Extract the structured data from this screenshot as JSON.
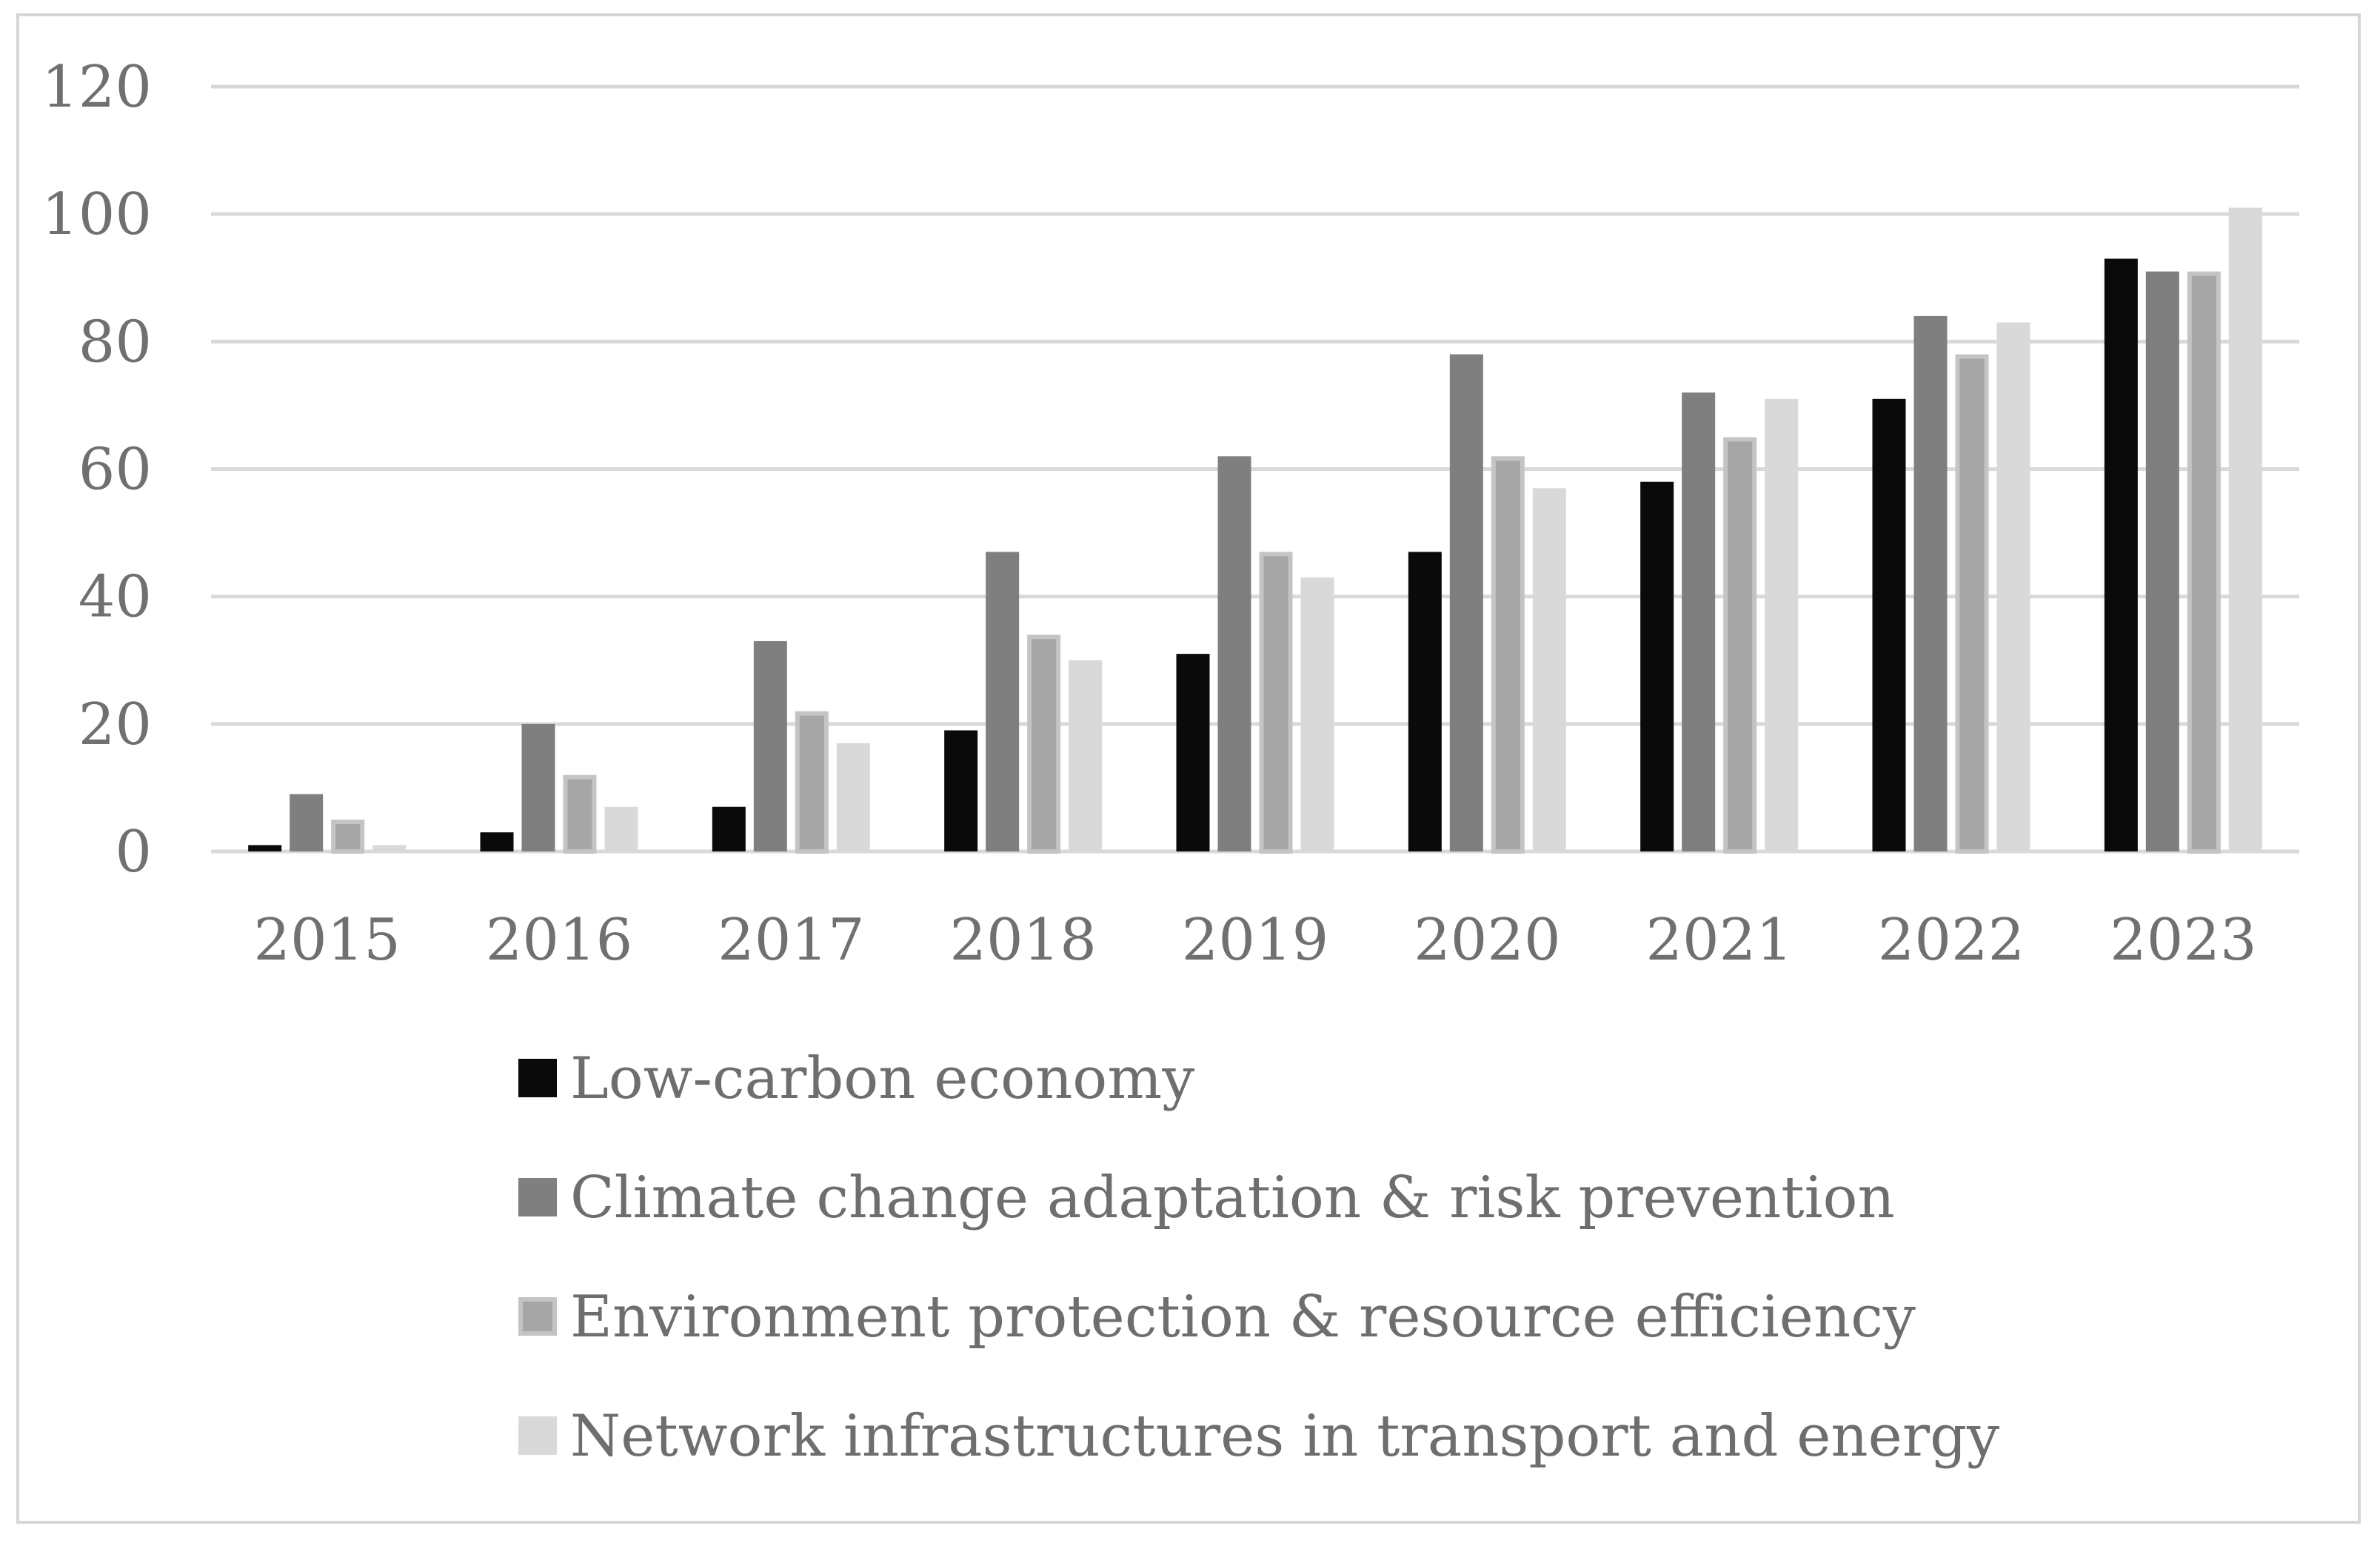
{
  "chart_data": {
    "type": "bar",
    "title": "",
    "xlabel": "",
    "ylabel": "",
    "ylim": [
      0,
      120
    ],
    "yticks": [
      0,
      20,
      40,
      60,
      80,
      100,
      120
    ],
    "grid": true,
    "legend_position": "bottom",
    "categories": [
      "2015",
      "2016",
      "2017",
      "2018",
      "2019",
      "2020",
      "2021",
      "2022",
      "2023"
    ],
    "series": [
      {
        "name": "Low-carbon economy",
        "color": "#0a0a0a",
        "values": [
          1,
          3,
          7,
          19,
          31,
          47,
          58,
          71,
          93
        ]
      },
      {
        "name": "Climate change adaptation & risk prevention",
        "color": "#7f7f7f",
        "values": [
          9,
          20,
          33,
          47,
          62,
          78,
          72,
          84,
          91
        ]
      },
      {
        "name": "Environment protection & resource efficiency",
        "color": "#a6a6a6",
        "stroke": "#c4c4c4",
        "values": [
          5,
          12,
          22,
          34,
          47,
          62,
          65,
          78,
          91
        ]
      },
      {
        "name": "Network infrastructures in transport and energy",
        "color": "#d9d9d9",
        "values": [
          1,
          7,
          17,
          30,
          43,
          57,
          71,
          83,
          101
        ]
      }
    ]
  }
}
